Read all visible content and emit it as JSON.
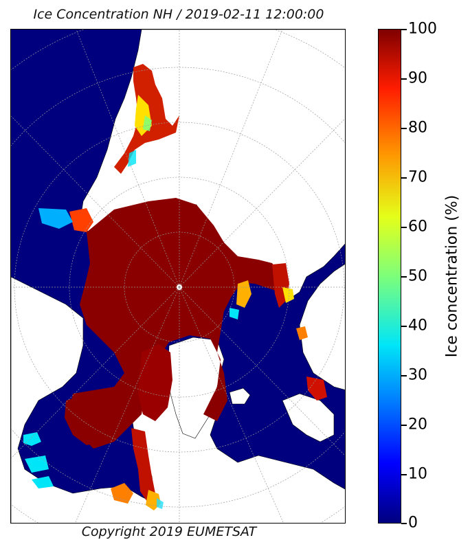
{
  "title": "Ice Concentration NH / 2019-02-11 12:00:00",
  "copyright": "Copyright 2019 EUMETSAT",
  "colorbar": {
    "label": "Ice concentration (%)",
    "ticks": [
      "100",
      "90",
      "80",
      "70",
      "60",
      "50",
      "40",
      "30",
      "20",
      "10",
      "0"
    ],
    "colormap": "jet",
    "range": [
      0,
      100
    ]
  },
  "colors": {
    "ocean_open_water": "#00007f",
    "land": "#ffffff",
    "ice_full": "#7f0000",
    "ice_edge_yellow": "#ffff00",
    "ice_edge_cyan": "#00e5f7"
  }
}
